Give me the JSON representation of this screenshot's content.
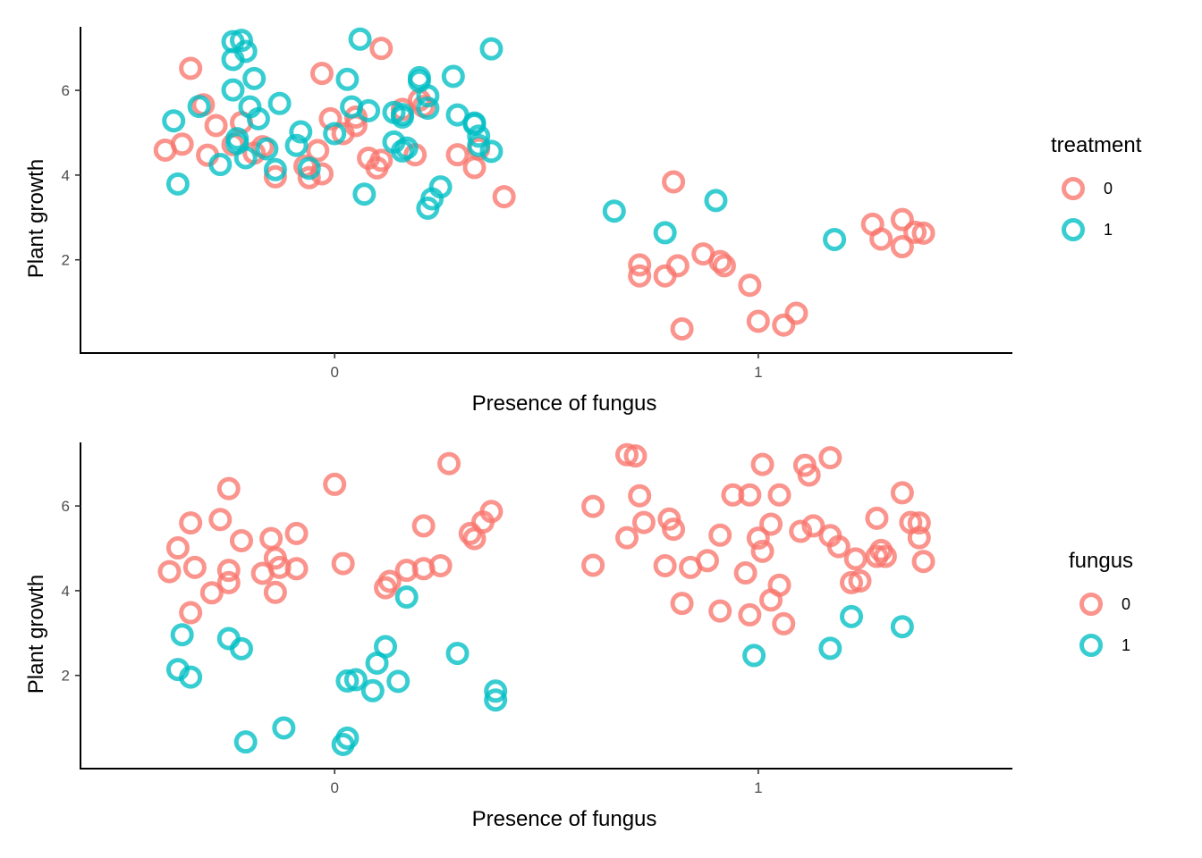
{
  "chart_data": [
    {
      "type": "scatter",
      "title": "",
      "xlabel": "Presence of fungus",
      "ylabel": "Plant growth",
      "xlim": [
        -0.6,
        1.6
      ],
      "ylim": [
        -0.2,
        7.5
      ],
      "x_ticks": [
        {
          "value": 0,
          "label": "0"
        },
        {
          "value": 1,
          "label": "1"
        }
      ],
      "y_ticks": [
        {
          "value": 2,
          "label": "2"
        },
        {
          "value": 4,
          "label": "4"
        },
        {
          "value": 6,
          "label": "6"
        }
      ],
      "grid": false,
      "legend": {
        "title": "treatment",
        "position": "right",
        "entries": [
          {
            "label": "0",
            "color": "#F8766D"
          },
          {
            "label": "1",
            "color": "#00BFC4"
          }
        ]
      },
      "series": [
        {
          "color": "#F8766D",
          "points": [
            [
              -0.34,
              6.52
            ],
            [
              -0.31,
              5.66
            ],
            [
              -0.36,
              4.73
            ],
            [
              -0.4,
              4.59
            ],
            [
              -0.3,
              4.47
            ],
            [
              -0.28,
              5.17
            ],
            [
              -0.22,
              5.24
            ],
            [
              -0.24,
              4.72
            ],
            [
              -0.17,
              4.67
            ],
            [
              -0.19,
              4.52
            ],
            [
              -0.14,
              3.96
            ],
            [
              -0.07,
              4.21
            ],
            [
              -0.04,
              4.58
            ],
            [
              -0.06,
              3.94
            ],
            [
              -0.03,
              4.03
            ],
            [
              -0.03,
              6.4
            ],
            [
              -0.01,
              5.33
            ],
            [
              0.02,
              4.98
            ],
            [
              0.05,
              5.17
            ],
            [
              0.05,
              5.37
            ],
            [
              0.08,
              4.4
            ],
            [
              0.1,
              4.17
            ],
            [
              0.11,
              4.35
            ],
            [
              0.11,
              6.99
            ],
            [
              0.19,
              4.48
            ],
            [
              0.2,
              5.77
            ],
            [
              0.21,
              5.62
            ],
            [
              0.29,
              4.48
            ],
            [
              0.33,
              4.18
            ],
            [
              0.34,
              4.62
            ],
            [
              0.4,
              3.49
            ],
            [
              0.16,
              5.55
            ],
            [
              0.72,
              1.88
            ],
            [
              0.72,
              1.62
            ],
            [
              0.78,
              1.62
            ],
            [
              0.81,
              1.86
            ],
            [
              0.8,
              3.84
            ],
            [
              0.82,
              0.37
            ],
            [
              0.87,
              2.14
            ],
            [
              0.91,
              1.96
            ],
            [
              0.92,
              1.86
            ],
            [
              0.98,
              1.4
            ],
            [
              1.0,
              0.55
            ],
            [
              1.06,
              0.46
            ],
            [
              1.09,
              0.74
            ],
            [
              1.27,
              2.84
            ],
            [
              1.29,
              2.49
            ],
            [
              1.34,
              2.95
            ],
            [
              1.34,
              2.31
            ],
            [
              1.37,
              2.65
            ],
            [
              1.39,
              2.63
            ]
          ]
        },
        {
          "color": "#00BFC4",
          "points": [
            [
              -0.38,
              5.28
            ],
            [
              -0.37,
              3.79
            ],
            [
              -0.32,
              5.62
            ],
            [
              -0.27,
              4.25
            ],
            [
              -0.24,
              7.15
            ],
            [
              -0.22,
              7.18
            ],
            [
              -0.24,
              6.73
            ],
            [
              -0.21,
              6.92
            ],
            [
              -0.24,
              6.01
            ],
            [
              -0.19,
              6.28
            ],
            [
              -0.23,
              4.86
            ],
            [
              -0.23,
              4.75
            ],
            [
              -0.21,
              4.41
            ],
            [
              -0.2,
              5.61
            ],
            [
              -0.18,
              5.33
            ],
            [
              -0.16,
              4.62
            ],
            [
              -0.13,
              5.69
            ],
            [
              -0.14,
              4.13
            ],
            [
              -0.09,
              4.7
            ],
            [
              -0.08,
              5.02
            ],
            [
              -0.06,
              4.16
            ],
            [
              0.0,
              4.98
            ],
            [
              0.03,
              6.26
            ],
            [
              0.04,
              5.61
            ],
            [
              0.06,
              7.21
            ],
            [
              0.08,
              5.52
            ],
            [
              0.07,
              3.55
            ],
            [
              0.14,
              5.48
            ],
            [
              0.14,
              4.78
            ],
            [
              0.16,
              5.37
            ],
            [
              0.17,
              4.64
            ],
            [
              0.16,
              4.57
            ],
            [
              0.16,
              5.43
            ],
            [
              0.2,
              6.3
            ],
            [
              0.22,
              5.58
            ],
            [
              0.2,
              6.22
            ],
            [
              0.22,
              5.87
            ],
            [
              0.23,
              3.44
            ],
            [
              0.22,
              3.22
            ],
            [
              0.25,
              3.72
            ],
            [
              0.28,
              6.33
            ],
            [
              0.29,
              5.42
            ],
            [
              0.33,
              5.2
            ],
            [
              0.33,
              5.23
            ],
            [
              0.34,
              4.92
            ],
            [
              0.34,
              4.7
            ],
            [
              0.37,
              4.56
            ],
            [
              0.37,
              6.98
            ],
            [
              0.66,
              3.15
            ],
            [
              0.78,
              2.64
            ],
            [
              0.9,
              3.4
            ],
            [
              1.18,
              2.48
            ]
          ]
        }
      ]
    },
    {
      "type": "scatter",
      "title": "",
      "xlabel": "Presence of fungus",
      "ylabel": "Plant growth",
      "xlim": [
        -0.6,
        1.6
      ],
      "ylim": [
        -0.2,
        7.5
      ],
      "x_ticks": [
        {
          "value": 0,
          "label": "0"
        },
        {
          "value": 1,
          "label": "1"
        }
      ],
      "y_ticks": [
        {
          "value": 2,
          "label": "2"
        },
        {
          "value": 4,
          "label": "4"
        },
        {
          "value": 6,
          "label": "6"
        }
      ],
      "grid": false,
      "legend": {
        "title": "fungus",
        "position": "right",
        "entries": [
          {
            "label": "0",
            "color": "#F8766D"
          },
          {
            "label": "1",
            "color": "#00BFC4"
          }
        ]
      },
      "series": [
        {
          "color": "#F8766D",
          "points": [
            [
              -0.39,
              4.45
            ],
            [
              -0.37,
              5.01
            ],
            [
              -0.34,
              5.6
            ],
            [
              -0.33,
              4.55
            ],
            [
              -0.34,
              3.48
            ],
            [
              -0.29,
              3.95
            ],
            [
              -0.27,
              5.68
            ],
            [
              -0.25,
              4.48
            ],
            [
              -0.25,
              4.19
            ],
            [
              -0.25,
              6.41
            ],
            [
              -0.22,
              5.18
            ],
            [
              -0.17,
              4.41
            ],
            [
              -0.15,
              5.23
            ],
            [
              -0.14,
              4.77
            ],
            [
              -0.13,
              4.55
            ],
            [
              -0.14,
              3.96
            ],
            [
              -0.09,
              4.52
            ],
            [
              -0.09,
              5.35
            ],
            [
              0.0,
              6.51
            ],
            [
              0.02,
              4.64
            ],
            [
              0.12,
              4.07
            ],
            [
              0.13,
              4.22
            ],
            [
              0.17,
              4.48
            ],
            [
              0.21,
              4.52
            ],
            [
              0.21,
              5.53
            ],
            [
              0.25,
              4.59
            ],
            [
              0.27,
              7.0
            ],
            [
              0.32,
              5.35
            ],
            [
              0.33,
              5.23
            ],
            [
              0.35,
              5.62
            ],
            [
              0.37,
              5.87
            ],
            [
              0.61,
              5.99
            ],
            [
              0.61,
              4.6
            ],
            [
              0.69,
              7.21
            ],
            [
              0.71,
              7.18
            ],
            [
              0.69,
              5.25
            ],
            [
              0.72,
              6.24
            ],
            [
              0.73,
              5.61
            ],
            [
              0.79,
              5.69
            ],
            [
              0.8,
              5.45
            ],
            [
              0.78,
              4.59
            ],
            [
              0.84,
              4.55
            ],
            [
              0.82,
              3.7
            ],
            [
              0.88,
              4.71
            ],
            [
              0.91,
              5.31
            ],
            [
              0.91,
              3.52
            ],
            [
              0.94,
              6.26
            ],
            [
              0.98,
              6.26
            ],
            [
              0.97,
              4.42
            ],
            [
              0.98,
              3.43
            ],
            [
              1.0,
              5.24
            ],
            [
              1.01,
              4.93
            ],
            [
              1.01,
              6.98
            ],
            [
              1.03,
              3.78
            ],
            [
              1.03,
              5.57
            ],
            [
              1.05,
              6.26
            ],
            [
              1.05,
              4.13
            ],
            [
              1.06,
              3.22
            ],
            [
              1.1,
              5.4
            ],
            [
              1.11,
              6.96
            ],
            [
              1.12,
              6.73
            ],
            [
              1.13,
              5.53
            ],
            [
              1.17,
              5.3
            ],
            [
              1.17,
              7.14
            ],
            [
              1.19,
              5.04
            ],
            [
              1.22,
              4.19
            ],
            [
              1.24,
              4.23
            ],
            [
              1.23,
              4.75
            ],
            [
              1.28,
              5.71
            ],
            [
              1.29,
              4.95
            ],
            [
              1.3,
              4.81
            ],
            [
              1.28,
              4.81
            ],
            [
              1.34,
              6.31
            ],
            [
              1.36,
              5.61
            ],
            [
              1.38,
              5.6
            ],
            [
              1.38,
              5.25
            ],
            [
              1.39,
              4.69
            ]
          ]
        },
        {
          "color": "#00BFC4",
          "points": [
            [
              -0.37,
              2.14
            ],
            [
              -0.36,
              2.96
            ],
            [
              -0.34,
              1.96
            ],
            [
              -0.25,
              2.87
            ],
            [
              -0.22,
              2.63
            ],
            [
              -0.21,
              0.43
            ],
            [
              -0.12,
              0.76
            ],
            [
              0.02,
              0.37
            ],
            [
              0.03,
              0.52
            ],
            [
              0.03,
              1.87
            ],
            [
              0.05,
              1.9
            ],
            [
              0.09,
              1.64
            ],
            [
              0.1,
              2.29
            ],
            [
              0.12,
              2.68
            ],
            [
              0.15,
              1.86
            ],
            [
              0.17,
              3.85
            ],
            [
              0.29,
              2.52
            ],
            [
              0.38,
              1.63
            ],
            [
              0.38,
              1.42
            ],
            [
              0.99,
              2.47
            ],
            [
              1.17,
              2.64
            ],
            [
              1.22,
              3.39
            ],
            [
              1.34,
              3.15
            ]
          ]
        }
      ]
    }
  ]
}
